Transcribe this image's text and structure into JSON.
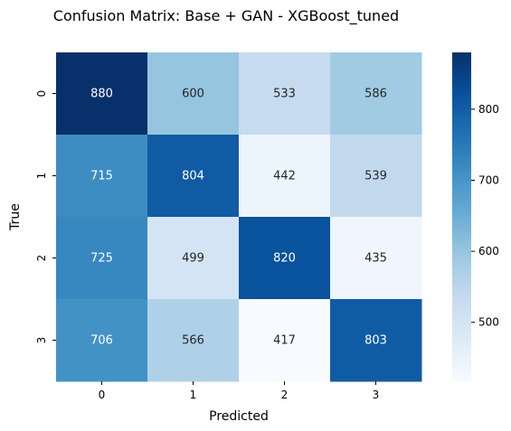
{
  "chart_data": {
    "type": "heatmap",
    "title": "Confusion Matrix: Base + GAN - XGBoost_tuned",
    "xlabel": "Predicted",
    "ylabel": "True",
    "x_categories": [
      "0",
      "1",
      "2",
      "3"
    ],
    "y_categories": [
      "0",
      "1",
      "2",
      "3"
    ],
    "values": [
      [
        880,
        600,
        533,
        586
      ],
      [
        715,
        804,
        442,
        539
      ],
      [
        725,
        499,
        820,
        435
      ],
      [
        706,
        566,
        417,
        803
      ]
    ],
    "colormap": "Blues",
    "vmin": 417,
    "vmax": 880,
    "colorbar_ticks": [
      "500",
      "600",
      "700",
      "800"
    ],
    "colorbar_tick_values": [
      500,
      600,
      700,
      800
    ],
    "legend_position": "right",
    "grid": false
  }
}
